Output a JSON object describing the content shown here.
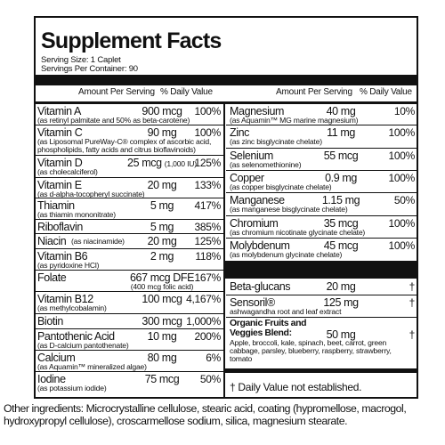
{
  "title": "Supplement Facts",
  "serving_size": "Serving Size: 1 Caplet",
  "servings_per_container": "Servings Per Container: 90",
  "column_headers": {
    "amount": "Amount Per Serving",
    "daily_value": "% Daily Value"
  },
  "left": [
    {
      "name": "Vitamin A",
      "amount": "900 mcg",
      "daily_value": "100%",
      "note": "(as retinyl palmitate and 50% as beta-carotene)"
    },
    {
      "name": "Vitamin C",
      "amount": "90 mg",
      "daily_value": "100%",
      "note": "(as Liposomal PureWay-C® complex of ascorbic acid, phospholipids, fatty acids and citrus bioflavinoids)"
    },
    {
      "name": "Vitamin D",
      "amount": "25 mcg",
      "amount_note": "(1,000 IU)",
      "daily_value": "125%",
      "note": "(as cholecalciferol)"
    },
    {
      "name": "Vitamin E",
      "amount": "20 mg",
      "daily_value": "133%",
      "note": "(as d-alpha-tocopheryl succinate)"
    },
    {
      "name": "Thiamin",
      "amount": "5 mg",
      "daily_value": "417%",
      "note": "(as thiamin mononitrate)"
    },
    {
      "name": "Riboflavin",
      "amount": "5 mg",
      "daily_value": "385%"
    },
    {
      "name": "Niacin",
      "amount": "20 mg",
      "daily_value": "125%",
      "note": "(as niacinamide)"
    },
    {
      "name": "Vitamin B6",
      "amount": "2 mg",
      "daily_value": "118%",
      "note": "(as pyridoxine HCl)"
    },
    {
      "name": "Folate",
      "amount": "667 mcg DFE",
      "amount_note": "(400 mcg folic acid)",
      "daily_value": "167%"
    },
    {
      "name": "Vitamin B12",
      "amount": "100 mcg",
      "daily_value": "4,167%",
      "note": "(as methylcobalamin)"
    },
    {
      "name": "Biotin",
      "amount": "300 mcg",
      "daily_value": "1,000%"
    },
    {
      "name": "Pantothenic Acid",
      "amount": "10 mg",
      "daily_value": "200%",
      "note": "(as D-calcium pantothenate)"
    },
    {
      "name": "Calcium",
      "amount": "80 mg",
      "daily_value": "6%",
      "note": "(as Aquamin™ mineralized algae)"
    },
    {
      "name": "Iodine",
      "amount": "75 mcg",
      "daily_value": "50%",
      "note": "(as potassium iodide)"
    }
  ],
  "right": [
    {
      "name": "Magnesium",
      "amount": "40 mg",
      "daily_value": "10%",
      "note": "(as Aquamin™ MG marine magnesium)"
    },
    {
      "name": "Zinc",
      "amount": "11 mg",
      "daily_value": "100%",
      "note": "(as zinc bisglycinate chelate)"
    },
    {
      "name": "Selenium",
      "amount": "55 mcg",
      "daily_value": "100%",
      "note": "(as selenomethionine)"
    },
    {
      "name": "Copper",
      "amount": "0.9 mg",
      "daily_value": "100%",
      "note": "(as copper bisglycinate chelate)"
    },
    {
      "name": "Manganese",
      "amount": "1.15 mg",
      "daily_value": "50%",
      "note": "(as manganese bisglycinate chelate)"
    },
    {
      "name": "Chromium",
      "amount": "35 mcg",
      "daily_value": "100%",
      "note": "(as chromium nicotinate glycinate chelate)"
    },
    {
      "name": "Molybdenum",
      "amount": "45 mcg",
      "daily_value": "100%",
      "note": "(as molybdenum glycinate chelate)"
    },
    {
      "name": "Beta-glucans",
      "amount": "20 mg",
      "daily_value": "†"
    },
    {
      "name": "Sensoril®",
      "amount": "125 mg",
      "daily_value": "†",
      "note": "ashwagandha root and leaf extract"
    },
    {
      "name": "Organic Fruits and Veggies Blend:",
      "amount": "50 mg",
      "daily_value": "†",
      "note": "Apple, broccoli, kale, spinach, beet, carrot, green cabbage, parsley, blueberry, raspberry, strawberry, tomato"
    }
  ],
  "footnote": "† Daily Value not established.",
  "other_ingredients": "Other ingredients: Microcrystalline cellulose, stearic acid, coating (hypromellose, macrogol, hydroxypropyl cellulose), croscarmellose sodium, silica, magnesium stearate."
}
